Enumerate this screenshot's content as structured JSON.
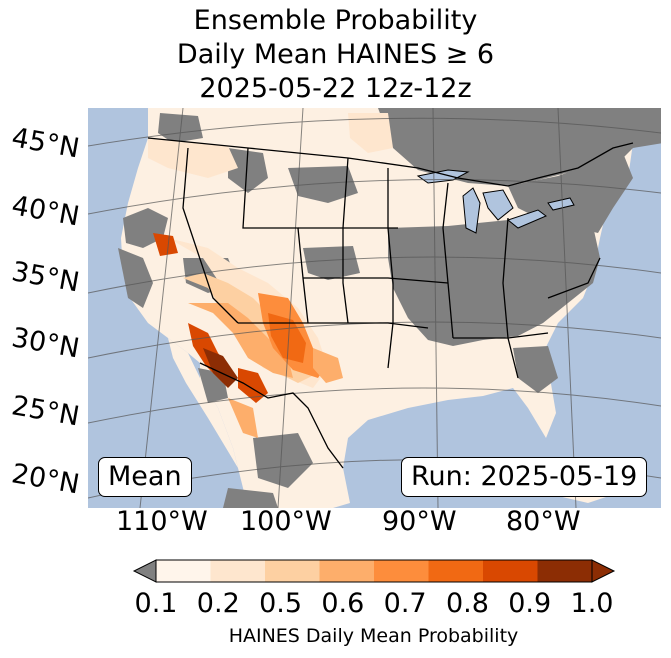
{
  "title": {
    "line1": "Ensemble Probability",
    "line2": "Daily Mean HAINES ≥ 6",
    "line3": "2025-05-22 12z-12z"
  },
  "map": {
    "lat_labels": [
      "45°N",
      "40°N",
      "35°N",
      "30°N",
      "25°N",
      "20°N"
    ],
    "lon_labels": [
      "110°W",
      "100°W",
      "90°W",
      "80°W"
    ],
    "statistic_label": "Mean",
    "run_label": "Run: 2025-05-19",
    "colors": {
      "ocean": "#b0c4de",
      "missing": "#808080",
      "land": "#fdf0e2"
    }
  },
  "colorbar": {
    "ticks": [
      "0.1",
      "0.2",
      "0.5",
      "0.6",
      "0.7",
      "0.8",
      "0.9",
      "1.0"
    ],
    "colors": [
      "#fff5eb",
      "#fee6ce",
      "#fdd0a2",
      "#fdae6b",
      "#fd8d3c",
      "#f16913",
      "#d94801",
      "#8c2d04"
    ],
    "under_color": "#808080",
    "label": "HAINES Daily Mean Probability"
  }
}
